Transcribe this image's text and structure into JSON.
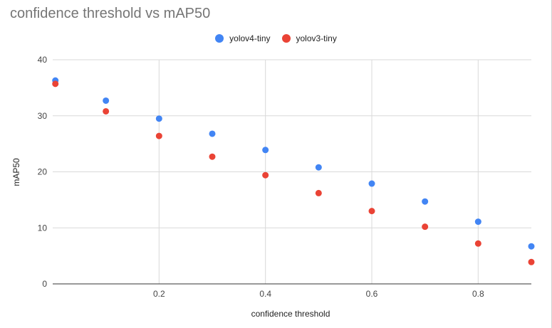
{
  "chart_data": {
    "type": "scatter",
    "title": "confidence threshold vs mAP50",
    "xlabel": "confidence threshold",
    "ylabel": "mAP50",
    "xlim": [
      0,
      0.9
    ],
    "ylim": [
      0,
      40
    ],
    "xticks": [
      0.2,
      0.4,
      0.6,
      0.8
    ],
    "yticks": [
      0,
      10,
      20,
      30,
      40
    ],
    "grid": true,
    "legend_position": "top",
    "series": [
      {
        "name": "yolov4-tiny",
        "color": "#4285f4",
        "x": [
          0.005,
          0.1,
          0.2,
          0.3,
          0.4,
          0.5,
          0.6,
          0.7,
          0.8,
          0.9
        ],
        "y": [
          36.3,
          32.7,
          29.5,
          26.8,
          23.9,
          20.8,
          17.9,
          14.7,
          11.1,
          6.7
        ]
      },
      {
        "name": "yolov3-tiny",
        "color": "#ea4335",
        "x": [
          0.005,
          0.1,
          0.2,
          0.3,
          0.4,
          0.5,
          0.6,
          0.7,
          0.8,
          0.9
        ],
        "y": [
          35.7,
          30.8,
          26.4,
          22.7,
          19.4,
          16.2,
          13.0,
          10.2,
          7.2,
          3.9
        ]
      }
    ]
  }
}
